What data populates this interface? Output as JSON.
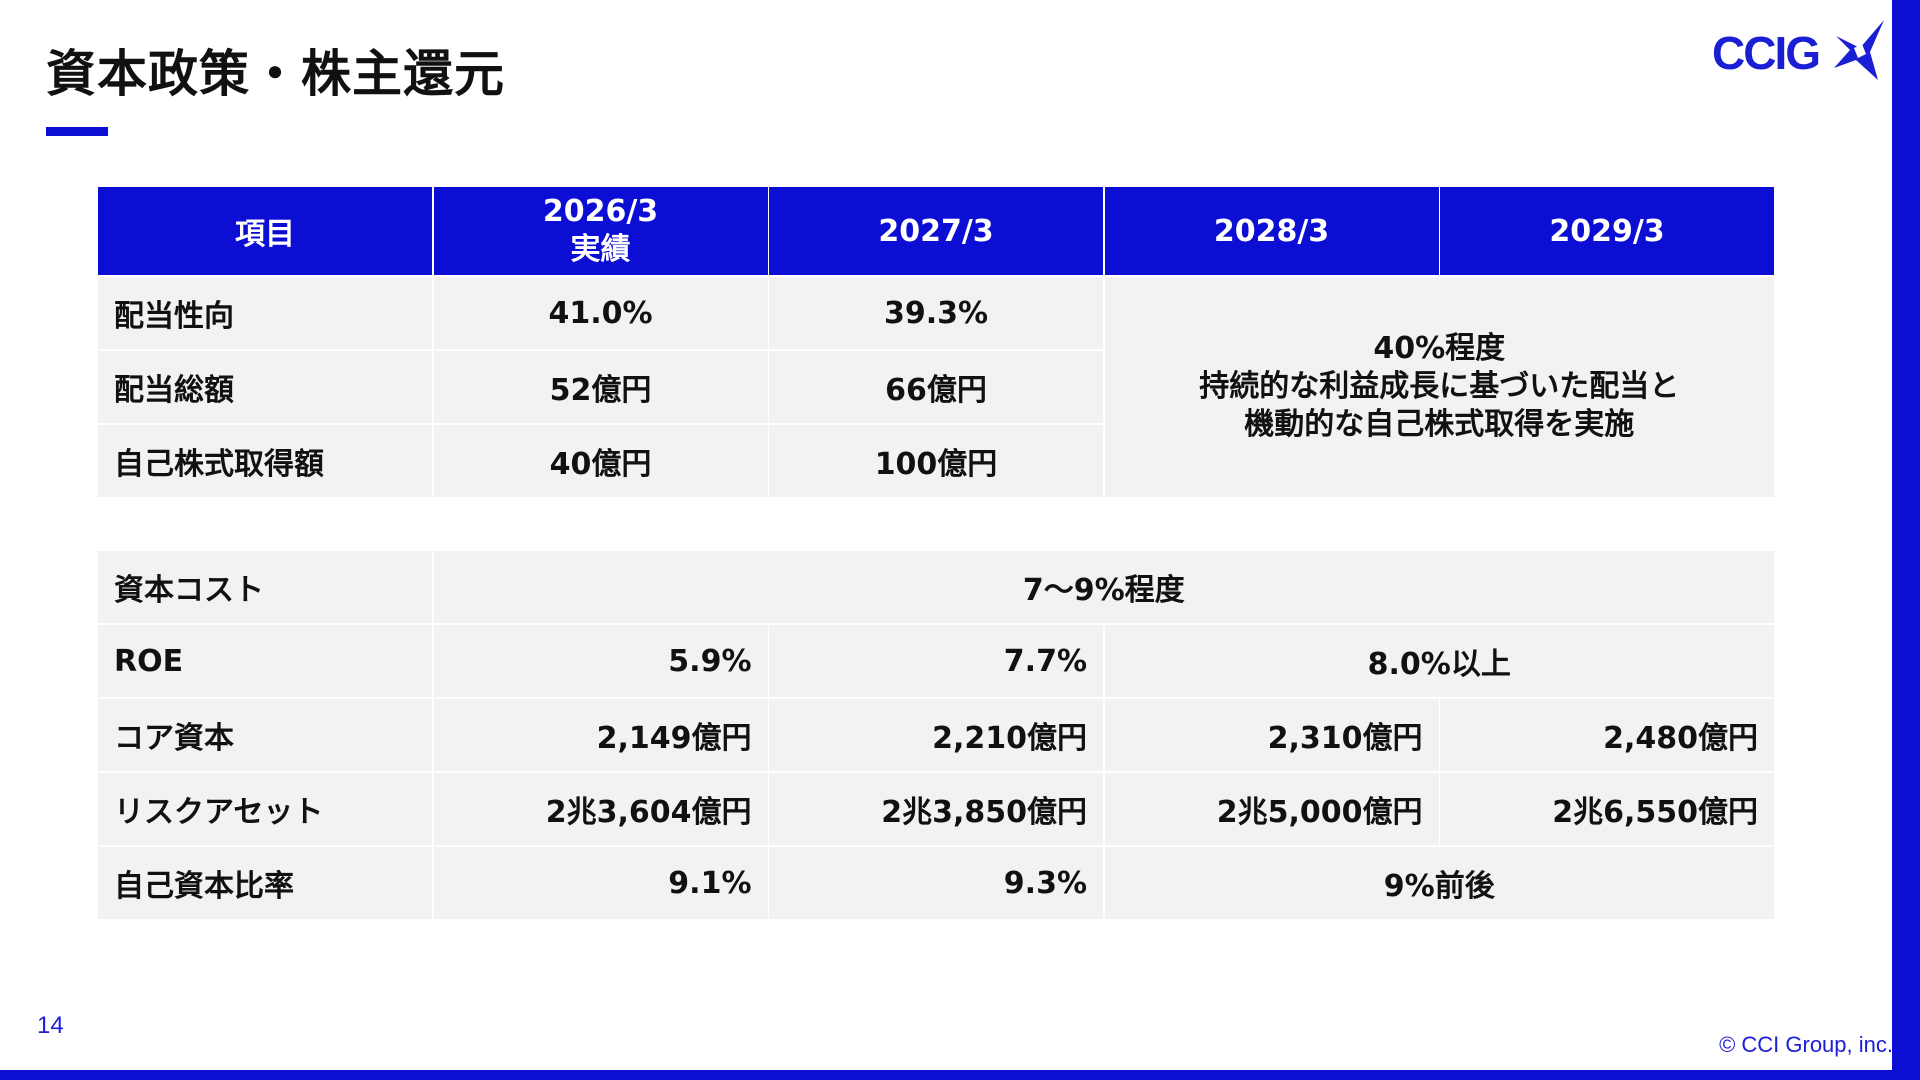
{
  "header": {
    "title": "資本政策・株主還元",
    "logo_text": "CCIG"
  },
  "table1": {
    "headers": [
      "項目",
      "2026/3",
      "2027/3",
      "2028/3",
      "2029/3"
    ],
    "header_sub": "実績",
    "rows": [
      {
        "label": "配当性向",
        "v2026": "41.0%",
        "v2027": "39.3%"
      },
      {
        "label": "配当総額",
        "v2026": "52億円",
        "v2027": "66億円"
      },
      {
        "label": "自己株式取得額",
        "v2026": "40億円",
        "v2027": "100億円"
      }
    ],
    "policy_note": [
      "40%程度",
      "持続的な利益成長に基づいた配当と",
      "機動的な自己株式取得を実施"
    ]
  },
  "table2": {
    "capital_cost": {
      "label": "資本コスト",
      "value": "7〜9%程度"
    },
    "roe": {
      "label": "ROE",
      "v2026": "5.9%",
      "v2027": "7.7%",
      "v2028_2029": "8.0%以上"
    },
    "core_capital": {
      "label": "コア資本",
      "v2026": "2,149億円",
      "v2027": "2,210億円",
      "v2028": "2,310億円",
      "v2029": "2,480億円"
    },
    "risk_assets": {
      "label": "リスクアセット",
      "v2026": "2兆3,604億円",
      "v2027": "2兆3,850億円",
      "v2028": "2兆5,000億円",
      "v2029": "2兆6,550億円"
    },
    "equity_ratio": {
      "label": "自己資本比率",
      "v2026": "9.1%",
      "v2027": "9.3%",
      "v2028_2029": "9%前後"
    }
  },
  "footer": {
    "page_number": "14",
    "copyright": "© CCI Group, inc."
  },
  "colors": {
    "brand_blue": "#0d0ed3",
    "cell_gray": "#f2f2f2"
  }
}
